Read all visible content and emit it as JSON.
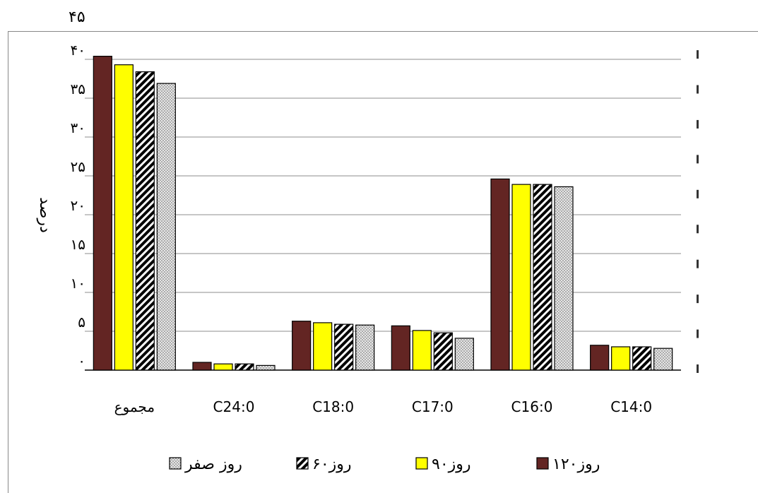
{
  "chart_data": {
    "type": "bar",
    "ylabel": "درصد",
    "y_ticks_left": [
      "۰",
      "۵",
      "۱۰",
      "۱۵",
      "۲۰",
      "۲۵",
      "۳۰",
      "۳۵",
      "۴۰",
      "۴۵"
    ],
    "ylim": [
      0,
      40
    ],
    "categories": [
      "مجموع",
      "C24:0",
      "C18:0",
      "C17:0",
      "C16:0",
      "C14:0"
    ],
    "series": [
      {
        "name": "روز۱۲۰",
        "color": "#632523",
        "pattern": "solid",
        "values": [
          40.4,
          1.0,
          6.3,
          5.7,
          24.6,
          3.2
        ]
      },
      {
        "name": "روز۹۰",
        "color": "#FFFF00",
        "pattern": "solid",
        "values": [
          39.3,
          0.8,
          6.1,
          5.1,
          23.9,
          3.0
        ]
      },
      {
        "name": "روز۶۰",
        "color": "#000000",
        "pattern": "hatch",
        "values": [
          38.4,
          0.8,
          5.9,
          4.8,
          23.9,
          3.0
        ]
      },
      {
        "name": "روز صفر",
        "color": "#D9D9D9",
        "pattern": "dots",
        "values": [
          36.9,
          0.6,
          5.8,
          4.1,
          23.6,
          2.8
        ]
      }
    ],
    "legend_position": "bottom",
    "grid": true
  }
}
